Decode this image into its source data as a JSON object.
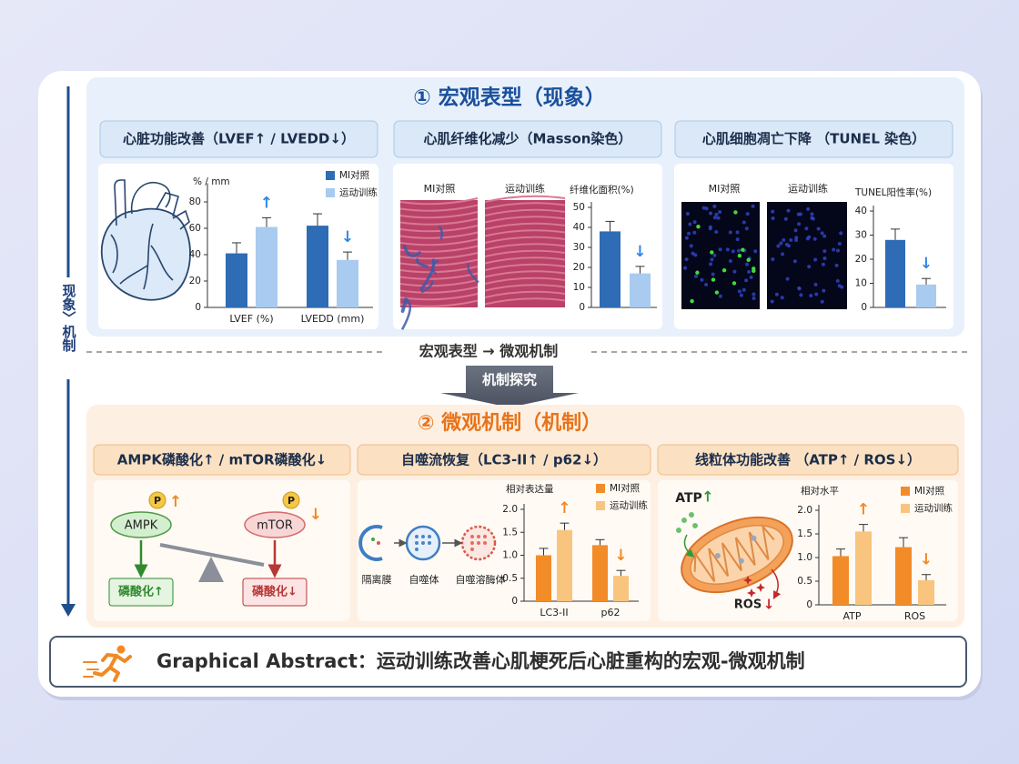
{
  "chart_data": [
    {
      "type": "bar",
      "title": "% / mm",
      "categories": [
        "LVEF (%)",
        "LVEDD (mm)"
      ],
      "series": [
        {
          "name": "MI对照",
          "color": "#2e6cb5",
          "values": [
            41,
            62
          ],
          "errors": [
            8,
            9
          ]
        },
        {
          "name": "运动训练",
          "color": "#a8cbef",
          "values": [
            61,
            36
          ],
          "errors": [
            7,
            6
          ]
        }
      ],
      "annotations": [
        "↑",
        "↓"
      ],
      "annotation_color": "#2f86e8",
      "ylim": [
        0,
        90
      ],
      "yticks": [
        0,
        20,
        40,
        60,
        80
      ],
      "legend": true
    },
    {
      "type": "bar",
      "title": "纤维化面积(%)",
      "categories": [
        null
      ],
      "series": [
        {
          "name": "MI对照",
          "color": "#2e6cb5",
          "values": [
            38
          ],
          "errors": [
            5
          ]
        },
        {
          "name": "运动训练",
          "color": "#a8cbef",
          "values": [
            17
          ],
          "errors": [
            3.5
          ]
        }
      ],
      "annotations": [
        "↓"
      ],
      "annotation_color": "#2f86e8",
      "ylim": [
        0,
        50
      ],
      "yticks": [
        0,
        10,
        20,
        30,
        40,
        50
      ],
      "legend": false
    },
    {
      "type": "bar",
      "title": "TUNEL阳性率(%)",
      "categories": [
        null
      ],
      "series": [
        {
          "name": "MI对照",
          "color": "#2e6cb5",
          "values": [
            28
          ],
          "errors": [
            4.5
          ]
        },
        {
          "name": "运动训练",
          "color": "#a8cbef",
          "values": [
            9.5
          ],
          "errors": [
            2.5
          ]
        }
      ],
      "annotations": [
        "↓"
      ],
      "annotation_color": "#2f86e8",
      "ylim": [
        0,
        40
      ],
      "yticks": [
        0,
        10,
        20,
        30,
        40
      ],
      "legend": false
    },
    {
      "type": "bar",
      "title": "相对表达量",
      "categories": [
        "LC3-II",
        "p62"
      ],
      "series": [
        {
          "name": "MI对照",
          "color": "#f28c28",
          "values": [
            1.0,
            1.22
          ],
          "errors": [
            0.15,
            0.12
          ]
        },
        {
          "name": "运动训练",
          "color": "#f9c47e",
          "values": [
            1.55,
            0.55
          ],
          "errors": [
            0.15,
            0.12
          ]
        }
      ],
      "annotations": [
        "↑",
        "↓"
      ],
      "annotation_color": "#f08a24",
      "ylim": [
        0,
        2
      ],
      "yticks": [
        0,
        0.5,
        {
          "value": 1,
          "label": "1.0"
        },
        1.5,
        {
          "value": 2,
          "label": "2.0"
        }
      ],
      "legend": true
    },
    {
      "type": "bar",
      "title": "相对水平",
      "categories": [
        "ATP",
        "ROS"
      ],
      "series": [
        {
          "name": "MI对照",
          "color": "#f28c28",
          "values": [
            1.03,
            1.22
          ],
          "errors": [
            0.15,
            0.2
          ]
        },
        {
          "name": "运动训练",
          "color": "#f9c47e",
          "values": [
            1.55,
            0.52
          ],
          "errors": [
            0.15,
            0.12
          ]
        }
      ],
      "annotations": [
        "↑",
        "↓"
      ],
      "annotation_color": "#f08a24",
      "ylim": [
        0,
        2
      ],
      "yticks": [
        0,
        0.5,
        {
          "value": 1,
          "label": "1.0"
        },
        1.5,
        {
          "value": 2,
          "label": "2.0"
        }
      ],
      "legend": true
    }
  ],
  "page": {
    "side_label": "现象〉机制",
    "section1": {
      "title": "① 宏观表型（现象）",
      "panels": [
        {
          "title": "心脏功能改善（LVEF↑ / LVEDD↓）"
        },
        {
          "title": "心肌纤维化减少（Masson染色）",
          "image_labels": [
            "MI对照",
            "运动训练"
          ]
        },
        {
          "title": "心肌细胞凋亡下降 （TUNEL 染色）",
          "image_labels": [
            "MI对照",
            "运动训练"
          ]
        }
      ]
    },
    "transition": {
      "text": "宏观表型 → 微观机制",
      "arrow_label": "机制探究"
    },
    "section2": {
      "title": "② 微观机制（机制）",
      "panels": [
        {
          "title": "AMPK磷酸化↑ / mTOR磷酸化↓",
          "nodes": [
            "AMPK",
            "mTOR"
          ],
          "badges": [
            "P",
            "P"
          ],
          "arrows": [
            "↑",
            "↓"
          ],
          "outcomes": [
            "磷酸化↑",
            "磷酸化↓"
          ]
        },
        {
          "title": "自噬流恢复（LC3-II↑ / p62↓）",
          "stages": [
            "隔离膜",
            "自噬体",
            "自噬溶酶体"
          ]
        },
        {
          "title": "线粒体功能改善 （ATP↑ / ROS↓）",
          "labels": [
            "ATP",
            "ROS"
          ],
          "arrows": [
            "↑",
            "↓"
          ]
        }
      ]
    },
    "footer": {
      "text": "Graphical Abstract：运动训练改善心肌梗死后心脏重构的宏观-微观机制"
    }
  }
}
